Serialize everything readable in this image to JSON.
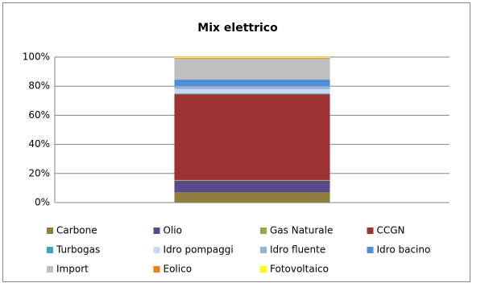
{
  "chart_data": {
    "type": "stacked_bar_100",
    "title": "Mix elettrico",
    "categories": [
      null
    ],
    "series": [
      {
        "name": "Carbone",
        "color": "#8e7f3f",
        "values": [
          7
        ]
      },
      {
        "name": "Olio",
        "color": "#5b4a8b",
        "values": [
          8
        ]
      },
      {
        "name": "Gas Naturale",
        "color": "#8fae4a",
        "values": [
          0.5
        ]
      },
      {
        "name": "CCGN",
        "color": "#9b3333",
        "values": [
          59
        ]
      },
      {
        "name": "Turbogas",
        "color": "#3fa5b8",
        "values": [
          0.5
        ]
      },
      {
        "name": "Idro pompaggi",
        "color": "#c6d9f1",
        "values": [
          3
        ]
      },
      {
        "name": "Idro fluente",
        "color": "#95b3d7",
        "values": [
          2
        ]
      },
      {
        "name": "Idro bacino",
        "color": "#4f8fd8",
        "values": [
          4.5
        ]
      },
      {
        "name": "Import",
        "color": "#bfbfbf",
        "values": [
          14.5
        ]
      },
      {
        "name": "Eolico",
        "color": "#f07f1a",
        "values": [
          0.5
        ]
      },
      {
        "name": "Fotovoltaico",
        "color": "#ffff00",
        "values": [
          0.5
        ]
      }
    ],
    "ylim": [
      0,
      100
    ],
    "yticks": [
      {
        "value": 0,
        "label": "0%"
      },
      {
        "value": 20,
        "label": "20%"
      },
      {
        "value": 40,
        "label": "40%"
      },
      {
        "value": 60,
        "label": "60%"
      },
      {
        "value": 80,
        "label": "80%"
      },
      {
        "value": 100,
        "label": "100%"
      }
    ],
    "grid": true,
    "legend": "bottom"
  }
}
